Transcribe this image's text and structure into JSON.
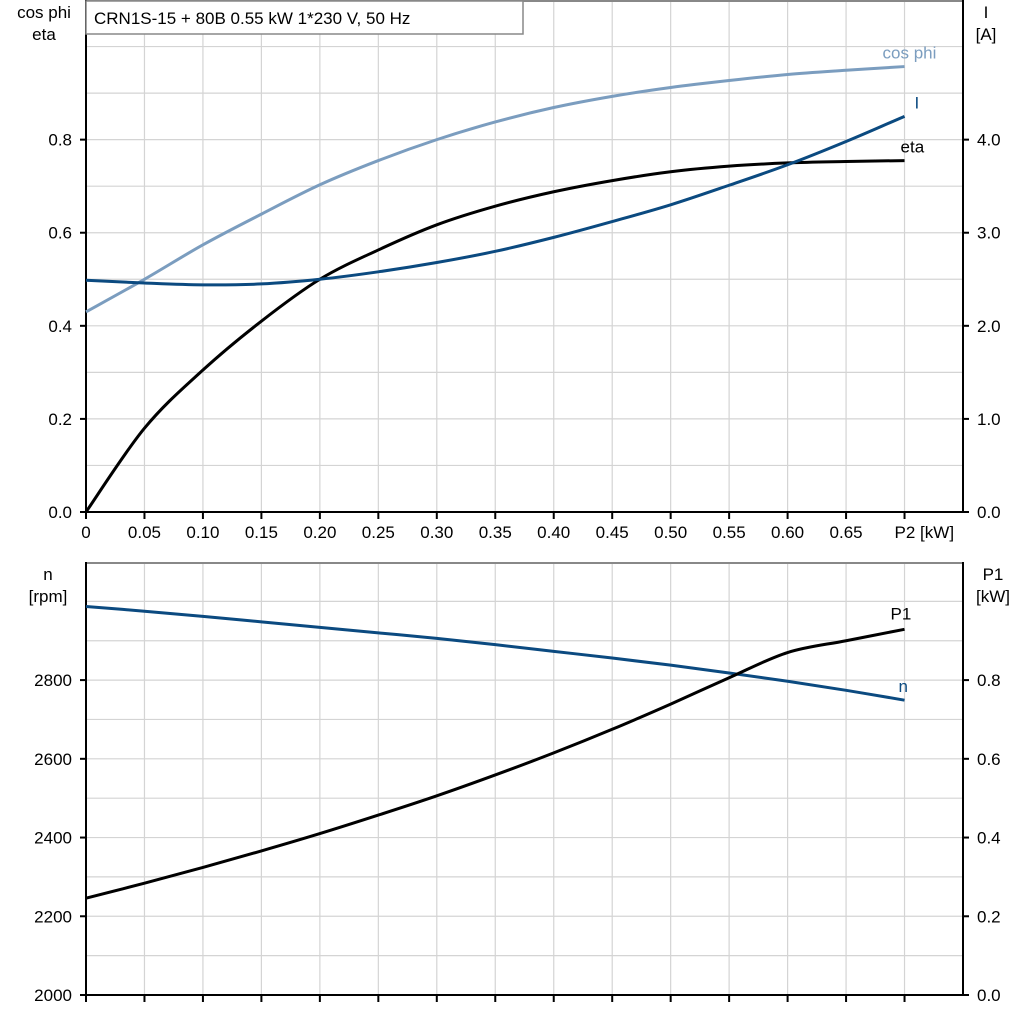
{
  "chart_data": [
    {
      "type": "line",
      "title": "CRN1S-15 + 80B   0.55 kW   1*230 V, 50 Hz",
      "xlabel": "P2 [kW]",
      "xlim": [
        0,
        0.75
      ],
      "xticks": [
        0,
        0.05,
        0.1,
        0.15,
        0.2,
        0.25,
        0.3,
        0.35,
        0.4,
        0.45,
        0.5,
        0.55,
        0.6,
        0.65
      ],
      "xtick_labels": [
        "0",
        "0.05",
        "0.10",
        "0.15",
        "0.20",
        "0.25",
        "0.30",
        "0.35",
        "0.40",
        "0.45",
        "0.50",
        "0.55",
        "0.60",
        "0.65"
      ],
      "ylabel_left": [
        "cos phi",
        "eta"
      ],
      "ylim_left": [
        0,
        1.1
      ],
      "yticks_left": [
        "0.0",
        "0.2",
        "0.4",
        "0.6",
        "0.8"
      ],
      "ylabel_right": [
        "I",
        "[A]"
      ],
      "ylim_right": [
        0,
        5.5
      ],
      "yticks_right": [
        "0.0",
        "1.0",
        "2.0",
        "3.0",
        "4.0"
      ],
      "grid": true,
      "x": [
        0,
        0.05,
        0.1,
        0.15,
        0.2,
        0.25,
        0.3,
        0.35,
        0.4,
        0.45,
        0.5,
        0.55,
        0.6,
        0.65,
        0.7
      ],
      "series": [
        {
          "name": "cos phi",
          "axis": "left",
          "color": "#7b9dbf",
          "values": [
            0.43,
            0.5,
            0.574,
            0.64,
            0.703,
            0.755,
            0.8,
            0.838,
            0.869,
            0.893,
            0.912,
            0.927,
            0.94,
            0.949,
            0.957
          ]
        },
        {
          "name": "eta",
          "axis": "left",
          "color": "#000000",
          "values": [
            0.0,
            0.18,
            0.305,
            0.41,
            0.5,
            0.563,
            0.617,
            0.657,
            0.688,
            0.712,
            0.731,
            0.743,
            0.75,
            0.753,
            0.755
          ]
        },
        {
          "name": "I",
          "axis": "right",
          "color": "#0b4a80",
          "values": [
            2.49,
            2.46,
            2.44,
            2.45,
            2.5,
            2.58,
            2.68,
            2.8,
            2.95,
            3.12,
            3.3,
            3.51,
            3.73,
            3.98,
            4.25
          ]
        }
      ]
    },
    {
      "type": "line",
      "xlabel": "",
      "xlim": [
        0,
        0.75
      ],
      "ylabel_left": [
        "n",
        "[rpm]"
      ],
      "ylim_left": [
        2000,
        3100
      ],
      "yticks_left": [
        "2000",
        "2200",
        "2400",
        "2600",
        "2800"
      ],
      "ylabel_right": [
        "P1",
        "[kW]"
      ],
      "ylim_right": [
        0,
        1.1
      ],
      "yticks_right": [
        "0.0",
        "0.2",
        "0.4",
        "0.6",
        "0.8"
      ],
      "grid": true,
      "x": [
        0,
        0.05,
        0.1,
        0.15,
        0.2,
        0.25,
        0.3,
        0.35,
        0.4,
        0.45,
        0.5,
        0.55,
        0.6,
        0.65,
        0.7
      ],
      "series": [
        {
          "name": "n",
          "axis": "left",
          "color": "#0b4a80",
          "values": [
            2987,
            2975,
            2962,
            2948,
            2934,
            2920,
            2906,
            2890,
            2873,
            2856,
            2838,
            2818,
            2797,
            2774,
            2749
          ]
        },
        {
          "name": "P1",
          "axis": "right",
          "color": "#000000",
          "values": [
            0.246,
            0.284,
            0.324,
            0.366,
            0.41,
            0.457,
            0.506,
            0.559,
            0.615,
            0.675,
            0.739,
            0.806,
            0.87,
            0.9,
            0.929
          ]
        }
      ]
    }
  ]
}
